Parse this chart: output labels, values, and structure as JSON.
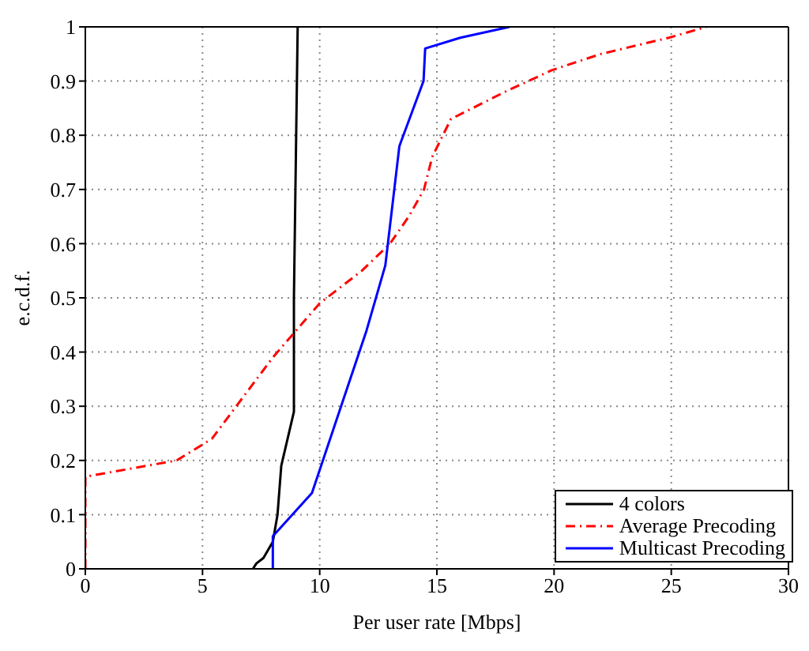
{
  "chart_data": {
    "type": "line",
    "xlabel": "Per user rate [Mbps]",
    "ylabel": "e.c.d.f.",
    "xlim": [
      0,
      30
    ],
    "xticks": [
      0,
      5,
      10,
      15,
      20,
      25,
      30
    ],
    "ylim": [
      0,
      1
    ],
    "yticks": [
      0,
      0.1,
      0.2,
      0.3,
      0.4,
      0.5,
      0.6,
      0.7,
      0.8,
      0.9,
      1
    ],
    "grid": true,
    "legend": "bottom right",
    "marker": "none",
    "series": [
      {
        "name": "4 colors",
        "color": "#000000",
        "line_style": "solid",
        "x": [
          7.15,
          7.3,
          7.6,
          8.0,
          8.2,
          8.36,
          8.9,
          8.9,
          9.06
        ],
        "values": [
          0,
          0.01,
          0.02,
          0.05,
          0.1,
          0.19,
          0.29,
          0.5,
          1
        ]
      },
      {
        "name": "Average Precoding",
        "color": "#ff0000",
        "line_style": "dashdot",
        "x": [
          0,
          0,
          3.9,
          5.4,
          8.0,
          10.0,
          11.8,
          13.0,
          13.8,
          14.45,
          14.8,
          15.6,
          17.9,
          19.9,
          22,
          24.9,
          26.5
        ],
        "values": [
          0,
          0.17,
          0.2,
          0.24,
          0.39,
          0.49,
          0.55,
          0.6,
          0.65,
          0.7,
          0.76,
          0.83,
          0.88,
          0.92,
          0.95,
          0.98,
          1
        ]
      },
      {
        "name": "Multicast Precoding",
        "color": "#0000ff",
        "line_style": "solid",
        "x": [
          8.0,
          8.0,
          9.67,
          12.0,
          12.8,
          13.4,
          14.43,
          14.5,
          16,
          18.1
        ],
        "values": [
          0,
          0.06,
          0.14,
          0.44,
          0.56,
          0.78,
          0.9,
          0.96,
          0.98,
          1
        ]
      }
    ]
  }
}
